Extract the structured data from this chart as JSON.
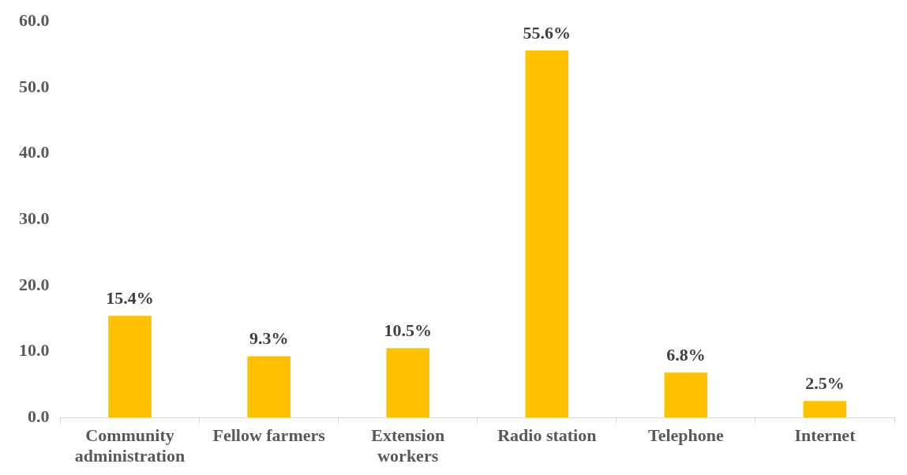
{
  "chart_data": {
    "type": "bar",
    "categories": [
      "Community\nadministration",
      "Fellow farmers",
      "Extension\nworkers",
      "Radio station",
      "Telephone",
      "Internet"
    ],
    "values": [
      15.4,
      9.3,
      10.5,
      55.6,
      6.8,
      2.5
    ],
    "value_labels": [
      "15.4%",
      "9.3%",
      "10.5%",
      "55.6%",
      "6.8%",
      "2.5%"
    ],
    "color": "#ffc000",
    "ylim": [
      0,
      60
    ],
    "yticks": [
      {
        "value": 0,
        "label": "0.0"
      },
      {
        "value": 10,
        "label": "10.0"
      },
      {
        "value": 20,
        "label": "20.0"
      },
      {
        "value": 30,
        "label": "30.0"
      },
      {
        "value": 40,
        "label": "40.0"
      },
      {
        "value": 50,
        "label": "50.0"
      },
      {
        "value": 60,
        "label": "60.0"
      }
    ],
    "grid": false,
    "legend": false
  }
}
